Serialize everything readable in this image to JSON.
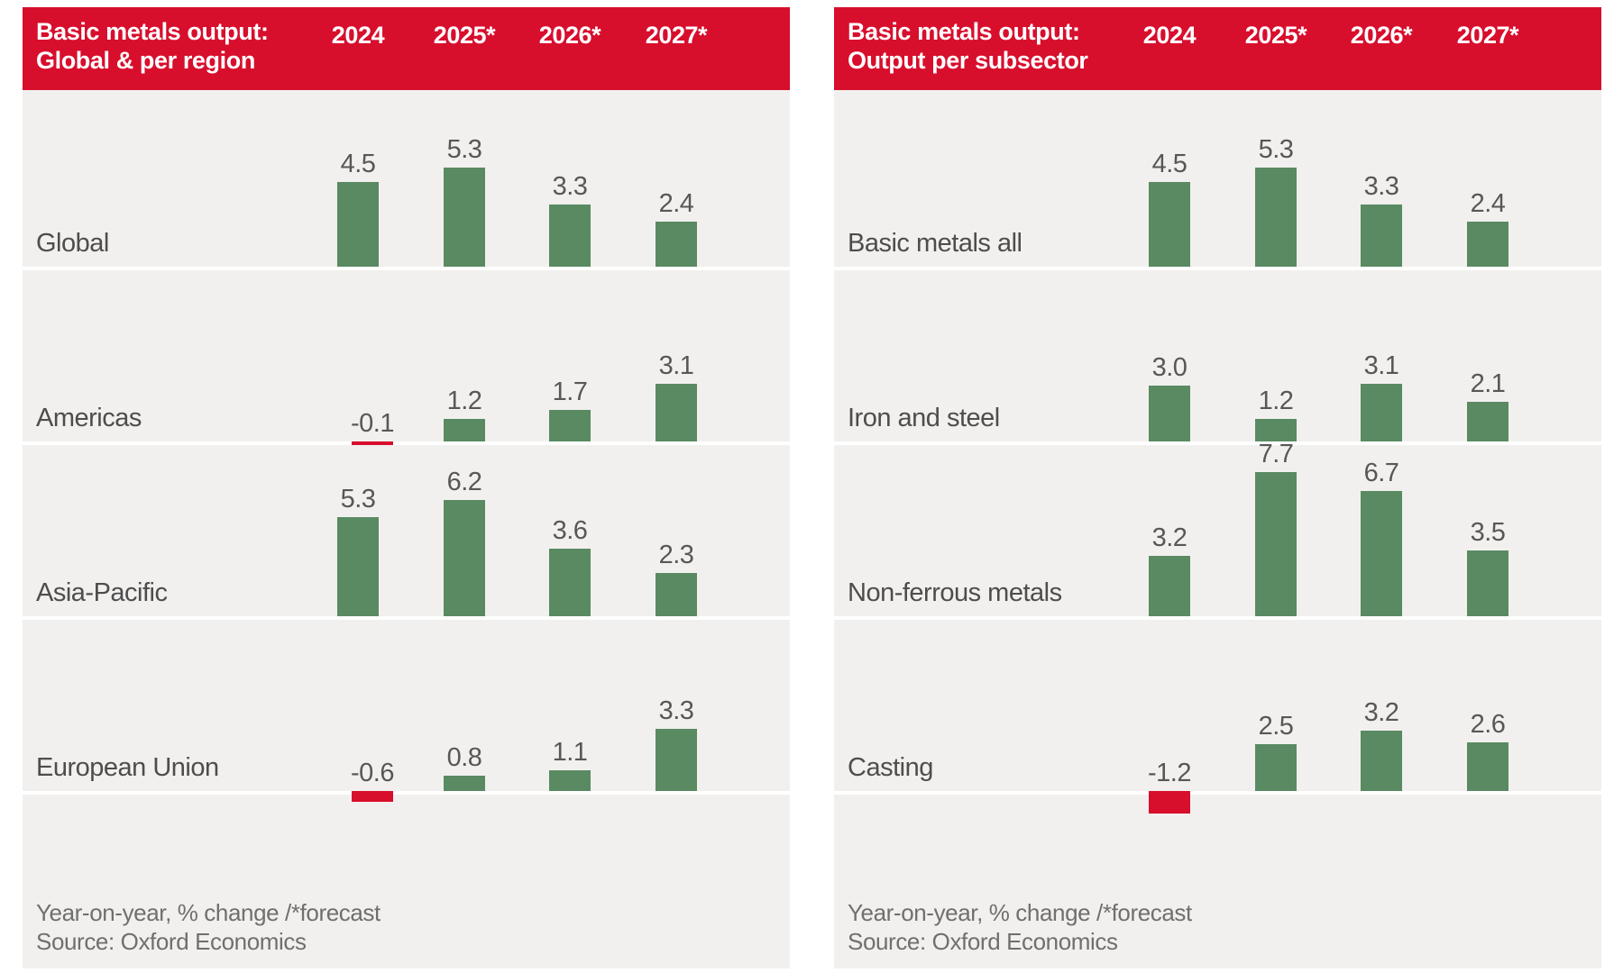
{
  "colors": {
    "bar_positive": "#598a62",
    "bar_negative": "#d80e2d",
    "header_bg": "#d80e2d",
    "header_text": "#ffffff",
    "row_bg": "#f2f0ee",
    "label_text": "#4d4d4d",
    "value_text": "#575757",
    "footnote_text": "#6f6f6f"
  },
  "chart_data": [
    {
      "type": "bar",
      "title": "Basic metals output: Global & per region",
      "title_lines": [
        "Basic metals output:",
        "Global & per region"
      ],
      "categories": [
        "2024",
        "2025*",
        "2026*",
        "2027*"
      ],
      "series": [
        {
          "name": "Global",
          "values": [
            4.5,
            5.3,
            3.3,
            2.4
          ]
        },
        {
          "name": "Americas",
          "values": [
            -0.1,
            1.2,
            1.7,
            3.1
          ]
        },
        {
          "name": "Asia-Pacific",
          "values": [
            5.3,
            6.2,
            3.6,
            2.3
          ]
        },
        {
          "name": "European Union",
          "values": [
            -0.6,
            0.8,
            1.1,
            3.3
          ]
        }
      ],
      "footnotes": [
        "Year-on-year, % change /*forecast",
        "Source: Oxford Economics"
      ],
      "ylabel": "% change year-on-year",
      "value_format": "one_decimal",
      "legend_position": "none",
      "grid": false,
      "approx_value_range": [
        -1.2,
        7.7
      ]
    },
    {
      "type": "bar",
      "title": "Basic metals output: Output per subsector",
      "title_lines": [
        "Basic metals output:",
        "Output per subsector"
      ],
      "categories": [
        "2024",
        "2025*",
        "2026*",
        "2027*"
      ],
      "series": [
        {
          "name": "Basic metals all",
          "values": [
            4.5,
            5.3,
            3.3,
            2.4
          ]
        },
        {
          "name": "Iron and steel",
          "values": [
            3.0,
            1.2,
            3.1,
            2.1
          ]
        },
        {
          "name": "Non-ferrous metals",
          "values": [
            3.2,
            7.7,
            6.7,
            3.5
          ]
        },
        {
          "name": "Casting",
          "values": [
            -1.2,
            2.5,
            3.2,
            2.6
          ]
        }
      ],
      "footnotes": [
        "Year-on-year, % change /*forecast",
        "Source: Oxford Economics"
      ],
      "ylabel": "% change year-on-year",
      "value_format": "one_decimal",
      "legend_position": "none",
      "grid": false,
      "approx_value_range": [
        -1.2,
        7.7
      ]
    }
  ]
}
